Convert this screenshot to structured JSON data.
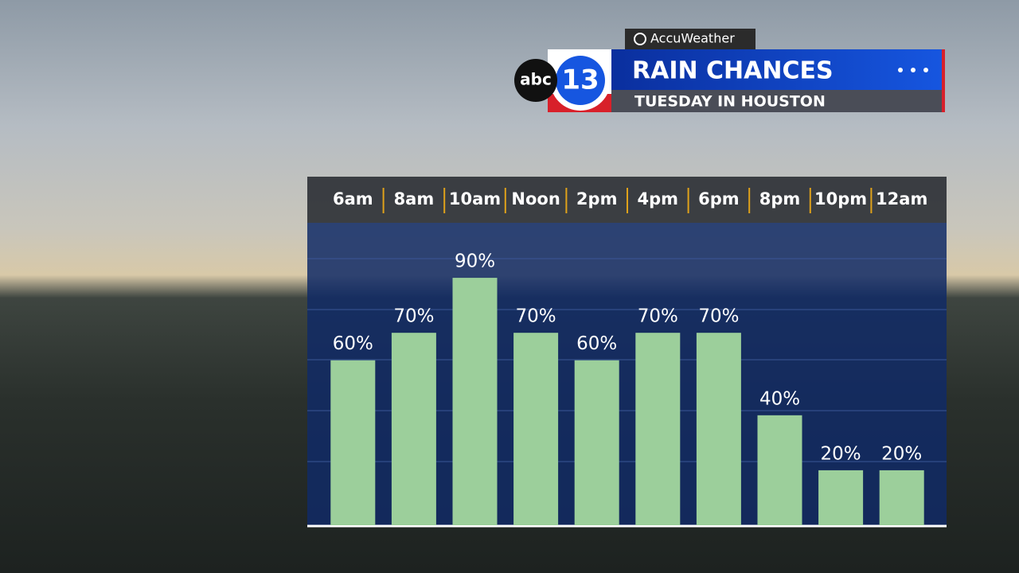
{
  "branding": {
    "provider": "AccuWeather",
    "network": "abc",
    "channel": "13"
  },
  "chart_data": {
    "type": "bar",
    "title": "RAIN CHANCES",
    "subtitle": "TUESDAY IN HOUSTON",
    "categories": [
      "6am",
      "8am",
      "10am",
      "Noon",
      "2pm",
      "4pm",
      "6pm",
      "8pm",
      "10pm",
      "12am"
    ],
    "values": [
      60,
      70,
      90,
      70,
      60,
      70,
      70,
      40,
      20,
      20
    ],
    "value_labels": [
      "60%",
      "70%",
      "90%",
      "70%",
      "60%",
      "70%",
      "70%",
      "40%",
      "20%",
      "20%"
    ],
    "color": "#9ccf9b",
    "ylim": [
      0,
      110
    ]
  }
}
